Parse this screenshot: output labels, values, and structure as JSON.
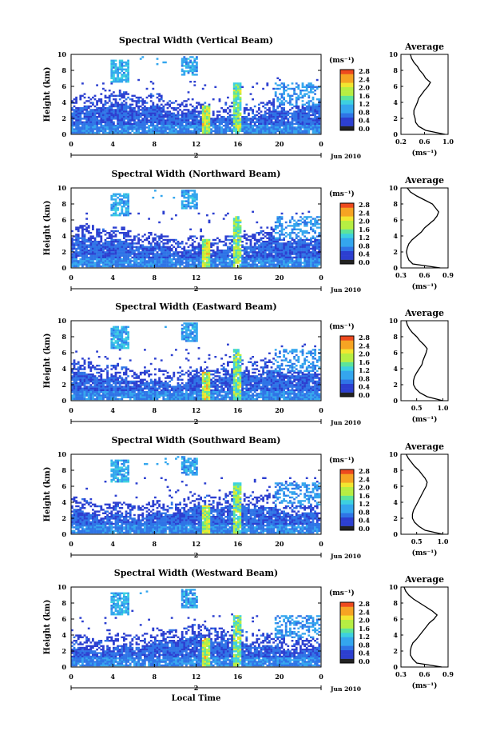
{
  "figure": {
    "x_axis_title": "Local Time",
    "date_label": "Jun 2010",
    "day_marker": "2",
    "colorbar_unit": "(ms⁻¹)",
    "avg_title": "Average",
    "avg_unit": "(ms⁻¹)",
    "height_label": "Height (km)",
    "colorbar_ticks": [
      "0.0",
      "0.4",
      "0.8",
      "1.2",
      "1.6",
      "2.0",
      "2.4",
      "2.8"
    ],
    "colors": {
      "ramp": [
        "#2a1e7a",
        "#2c3fd0",
        "#2f74e6",
        "#34a6ee",
        "#3dd0e0",
        "#5ce49a",
        "#b6ee42",
        "#f2e630",
        "#f6a423",
        "#ee4a1e"
      ],
      "low": "#28246a"
    }
  },
  "chart_data": [
    {
      "type": "heatmap",
      "title": "Spectral Width (Vertical Beam)",
      "xlabel": "",
      "ylabel": "Height (km)",
      "x_ticks": [
        "0",
        "4",
        "8",
        "12",
        "16",
        "20",
        "0"
      ],
      "xlim": [
        0,
        24
      ],
      "y_ticks": [
        "0",
        "2",
        "4",
        "6",
        "8",
        "10"
      ],
      "ylim": [
        0,
        10
      ],
      "colorbar_range": [
        0,
        2.8
      ],
      "average": {
        "title": "Average",
        "xlim": [
          0.2,
          1.0
        ],
        "x_ticks": [
          "0.2",
          "0.6",
          "1.0"
        ],
        "heights": [
          0.0,
          0.5,
          1.0,
          1.5,
          2.0,
          2.5,
          3.0,
          3.5,
          4.0,
          4.5,
          5.0,
          5.5,
          6.0,
          6.5,
          7.0,
          7.5,
          8.0,
          8.5,
          9.0,
          9.5,
          10.0
        ],
        "values": [
          0.95,
          0.62,
          0.5,
          0.45,
          0.44,
          0.42,
          0.42,
          0.45,
          0.48,
          0.5,
          0.55,
          0.6,
          0.66,
          0.7,
          0.62,
          0.58,
          0.52,
          0.48,
          0.42,
          0.38,
          0.36
        ]
      }
    },
    {
      "type": "heatmap",
      "title": "Spectral Width (Northward Beam)",
      "xlabel": "",
      "ylabel": "Height (km)",
      "x_ticks": [
        "0",
        "4",
        "8",
        "12",
        "16",
        "20",
        "0"
      ],
      "xlim": [
        0,
        24
      ],
      "y_ticks": [
        "0",
        "2",
        "4",
        "6",
        "8",
        "10"
      ],
      "ylim": [
        0,
        10
      ],
      "colorbar_range": [
        0,
        2.8
      ],
      "average": {
        "title": "Average",
        "xlim": [
          0.3,
          0.9
        ],
        "x_ticks": [
          "0.3",
          "0.6",
          "0.9"
        ],
        "heights": [
          0.0,
          0.5,
          1.0,
          1.5,
          2.0,
          2.5,
          3.0,
          3.5,
          4.0,
          4.5,
          5.0,
          5.5,
          6.0,
          6.5,
          7.0,
          7.5,
          8.0,
          8.5,
          9.0,
          9.5,
          10.0
        ],
        "values": [
          0.8,
          0.45,
          0.4,
          0.38,
          0.37,
          0.38,
          0.4,
          0.44,
          0.5,
          0.56,
          0.6,
          0.66,
          0.72,
          0.76,
          0.78,
          0.74,
          0.7,
          0.6,
          0.5,
          0.42,
          0.38
        ]
      }
    },
    {
      "type": "heatmap",
      "title": "Spectral Width (Eastward Beam)",
      "xlabel": "",
      "ylabel": "Height (km)",
      "x_ticks": [
        "0",
        "4",
        "8",
        "12",
        "16",
        "20",
        "0"
      ],
      "xlim": [
        0,
        24
      ],
      "y_ticks": [
        "0",
        "2",
        "4",
        "6",
        "8",
        "10"
      ],
      "ylim": [
        0,
        10
      ],
      "colorbar_range": [
        0,
        2.8
      ],
      "average": {
        "title": "Average",
        "xlim": [
          0.2,
          1.1
        ],
        "x_ticks": [
          "0.5",
          "1.0"
        ],
        "heights": [
          0.0,
          0.5,
          1.0,
          1.5,
          2.0,
          2.5,
          3.0,
          3.5,
          4.0,
          4.5,
          5.0,
          5.5,
          6.0,
          6.5,
          7.0,
          7.5,
          8.0,
          8.5,
          9.0,
          9.5,
          10.0
        ],
        "values": [
          1.0,
          0.7,
          0.56,
          0.48,
          0.44,
          0.44,
          0.46,
          0.5,
          0.55,
          0.6,
          0.62,
          0.65,
          0.68,
          0.7,
          0.64,
          0.56,
          0.5,
          0.42,
          0.36,
          0.32,
          0.3
        ]
      }
    },
    {
      "type": "heatmap",
      "title": "Spectral Width (Southward Beam)",
      "xlabel": "",
      "ylabel": "Height (km)",
      "x_ticks": [
        "0",
        "4",
        "8",
        "12",
        "16",
        "20",
        "0"
      ],
      "xlim": [
        0,
        24
      ],
      "y_ticks": [
        "0",
        "2",
        "4",
        "6",
        "8",
        "10"
      ],
      "ylim": [
        0,
        10
      ],
      "colorbar_range": [
        0,
        2.8
      ],
      "average": {
        "title": "Average",
        "xlim": [
          0.2,
          1.1
        ],
        "x_ticks": [
          "0.5",
          "1.0"
        ],
        "heights": [
          0.0,
          0.5,
          1.0,
          1.5,
          2.0,
          2.5,
          3.0,
          3.5,
          4.0,
          4.5,
          5.0,
          5.5,
          6.0,
          6.5,
          7.0,
          7.5,
          8.0,
          8.5,
          9.0,
          9.5,
          10.0
        ],
        "values": [
          1.0,
          0.66,
          0.54,
          0.46,
          0.42,
          0.42,
          0.44,
          0.48,
          0.52,
          0.56,
          0.6,
          0.64,
          0.68,
          0.7,
          0.66,
          0.6,
          0.54,
          0.46,
          0.4,
          0.34,
          0.3
        ]
      }
    },
    {
      "type": "heatmap",
      "title": "Spectral Width (Westward Beam)",
      "xlabel": "Local Time",
      "ylabel": "Height (km)",
      "x_ticks": [
        "0",
        "4",
        "8",
        "12",
        "16",
        "20",
        "0"
      ],
      "xlim": [
        0,
        24
      ],
      "y_ticks": [
        "0",
        "2",
        "4",
        "6",
        "8",
        "10"
      ],
      "ylim": [
        0,
        10
      ],
      "colorbar_range": [
        0,
        2.8
      ],
      "average": {
        "title": "Average",
        "xlim": [
          0.3,
          0.9
        ],
        "x_ticks": [
          "0.3",
          "0.6",
          "0.9"
        ],
        "heights": [
          0.0,
          0.5,
          1.0,
          1.5,
          2.0,
          2.5,
          3.0,
          3.5,
          4.0,
          4.5,
          5.0,
          5.5,
          6.0,
          6.5,
          7.0,
          7.5,
          8.0,
          8.5,
          9.0,
          9.5,
          10.0
        ],
        "values": [
          0.82,
          0.5,
          0.45,
          0.42,
          0.42,
          0.43,
          0.45,
          0.5,
          0.54,
          0.58,
          0.62,
          0.66,
          0.72,
          0.76,
          0.7,
          0.62,
          0.54,
          0.46,
          0.4,
          0.36,
          0.34
        ]
      }
    }
  ]
}
